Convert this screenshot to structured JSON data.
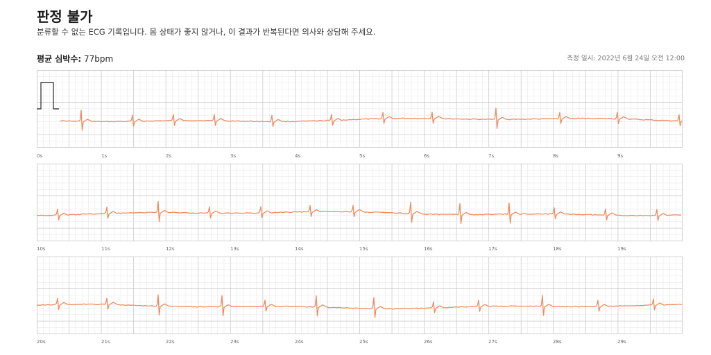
{
  "header": {
    "title": "판정 불가",
    "subtitle": "분류할 수 없는 ECG 기록입니다. 몸 상태가 좋지 않거나, 이 결과가 반복된다면 의사와 상담해 주세요.",
    "avg_hr_label": "평균 심박수:",
    "avg_hr_value": "77bpm",
    "measured_at": "측정 일시: 2022년 6월 24일 오전 12:00"
  },
  "colors": {
    "trace": "#f08a5d",
    "grid_minor": "#e6e6e6",
    "grid_major": "#c9c9c9",
    "calibration": "#444444"
  },
  "strips": [
    {
      "ticks": [
        "0s",
        "1s",
        "2s",
        "3s",
        "4s",
        "5s",
        "6s",
        "7s",
        "8s",
        "9s"
      ]
    },
    {
      "ticks": [
        "10s",
        "11s",
        "12s",
        "13s",
        "14s",
        "15s",
        "16s",
        "17s",
        "18s",
        "19s"
      ]
    },
    {
      "ticks": [
        "20s",
        "21s",
        "22s",
        "23s",
        "24s",
        "25s",
        "26s",
        "27s",
        "28s",
        "29s"
      ]
    }
  ]
}
